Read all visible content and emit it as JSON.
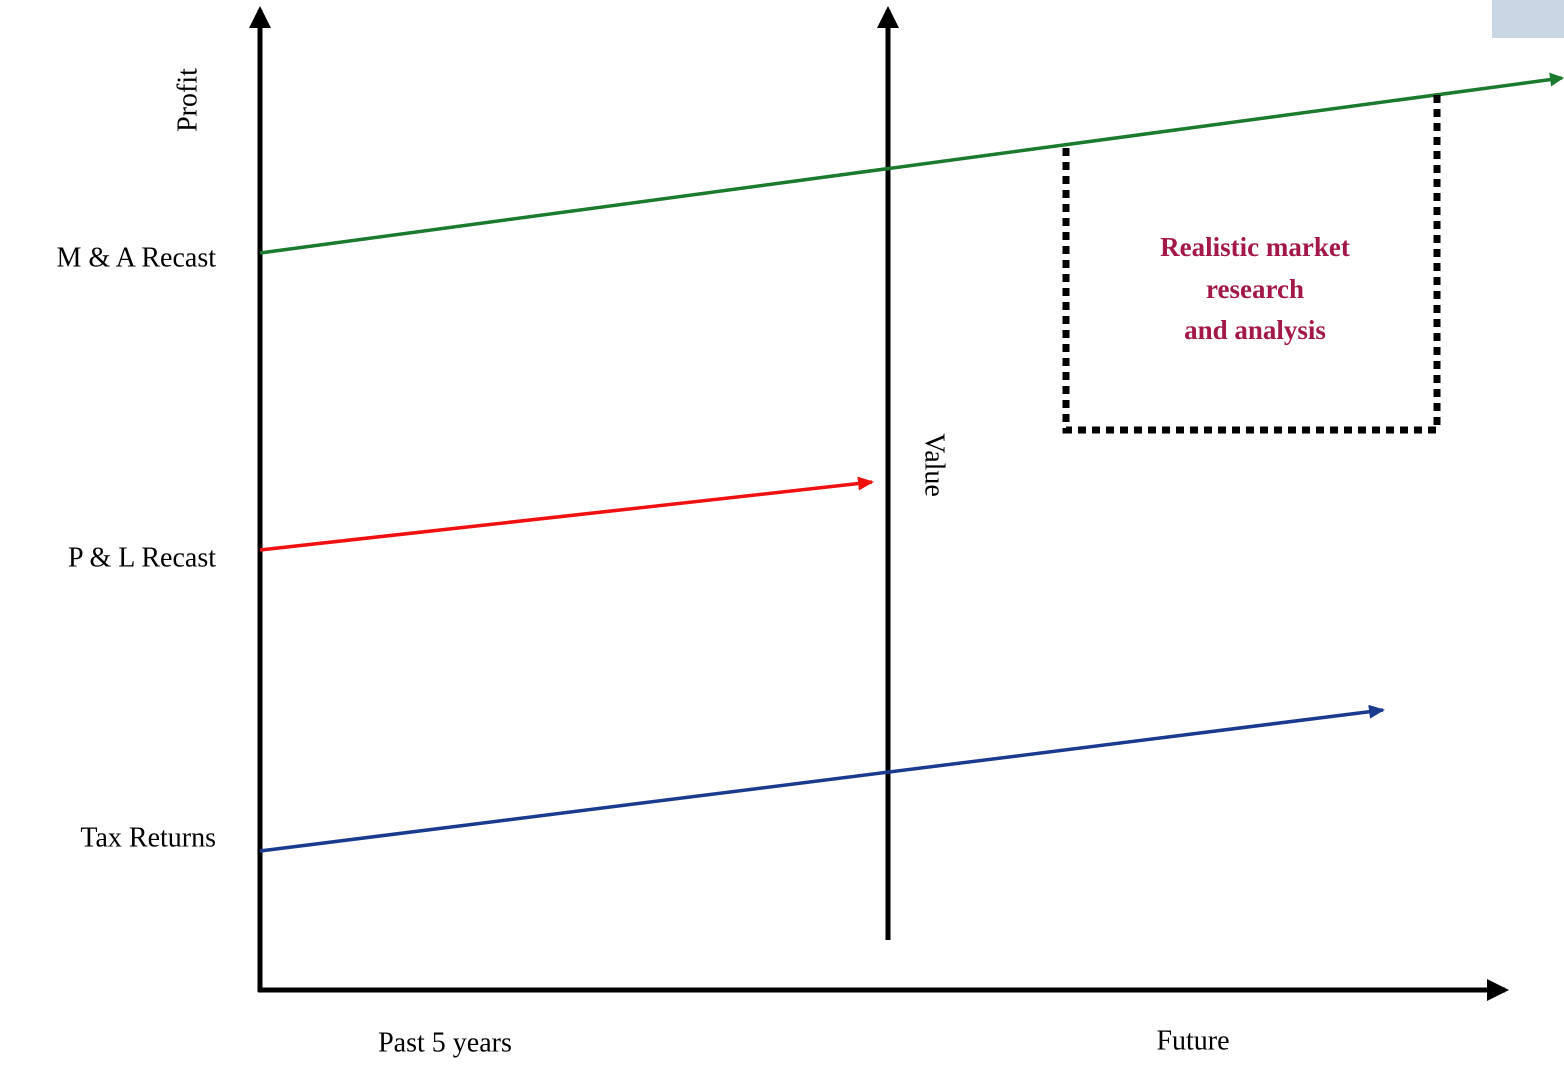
{
  "axes": {
    "y_label": "Profit",
    "x_labels": [
      "Past 5 years",
      "Future"
    ],
    "divider_label": "Value"
  },
  "levels": [
    "M & A Recast",
    "P & L Recast",
    "Tax Returns"
  ],
  "callout": {
    "lines": [
      "Realistic market",
      "research",
      "and analysis"
    ]
  }
}
